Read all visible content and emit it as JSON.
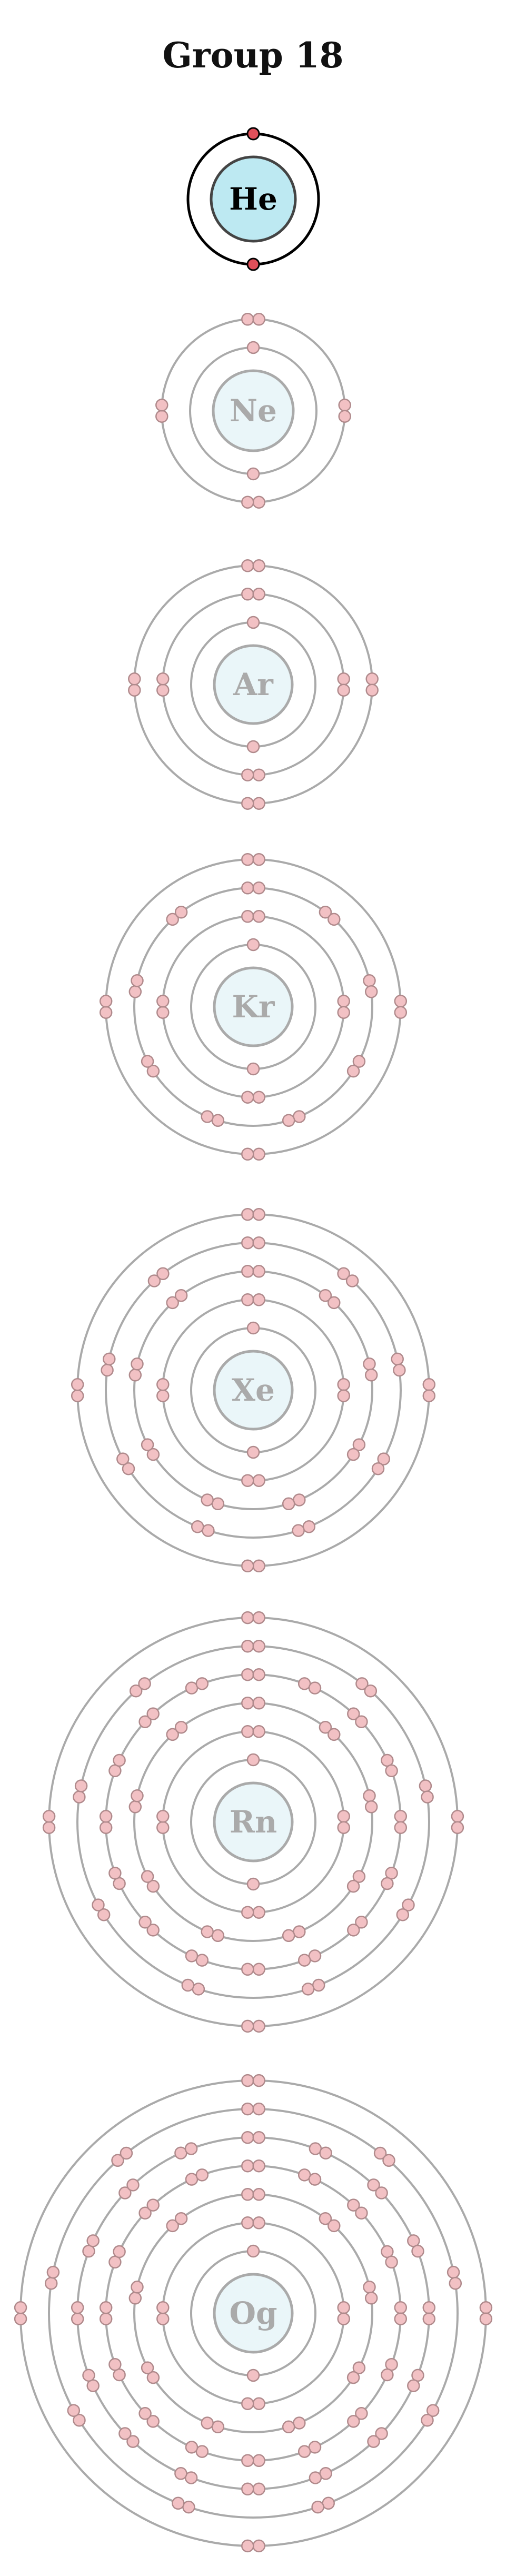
{
  "title": "Group 18",
  "colors": {
    "active_shell": "#000000",
    "active_nucleus_fill": "#bde9f2",
    "active_nucleus_stroke": "#444444",
    "active_electron_fill": "#e0505a",
    "faded_shell": "#aaaaaa",
    "faded_nucleus_fill": "#eaf6f9",
    "faded_nucleus_stroke": "#aaaaaa",
    "faded_electron_fill": "#f2c1c4",
    "faded_electron_stroke": "#b08a8c",
    "faded_symbol": "#aaaaaa"
  },
  "atoms": [
    {
      "symbol": "He",
      "shells": [
        2
      ],
      "highlighted": true
    },
    {
      "symbol": "Ne",
      "shells": [
        2,
        8
      ],
      "highlighted": false
    },
    {
      "symbol": "Ar",
      "shells": [
        2,
        8,
        8
      ],
      "highlighted": false
    },
    {
      "symbol": "Kr",
      "shells": [
        2,
        8,
        18,
        8
      ],
      "highlighted": false
    },
    {
      "symbol": "Xe",
      "shells": [
        2,
        8,
        18,
        18,
        8
      ],
      "highlighted": false
    },
    {
      "symbol": "Rn",
      "shells": [
        2,
        8,
        18,
        32,
        18,
        8
      ],
      "highlighted": false
    },
    {
      "symbol": "Og",
      "shells": [
        2,
        8,
        18,
        32,
        32,
        18,
        8
      ],
      "highlighted": false
    }
  ]
}
